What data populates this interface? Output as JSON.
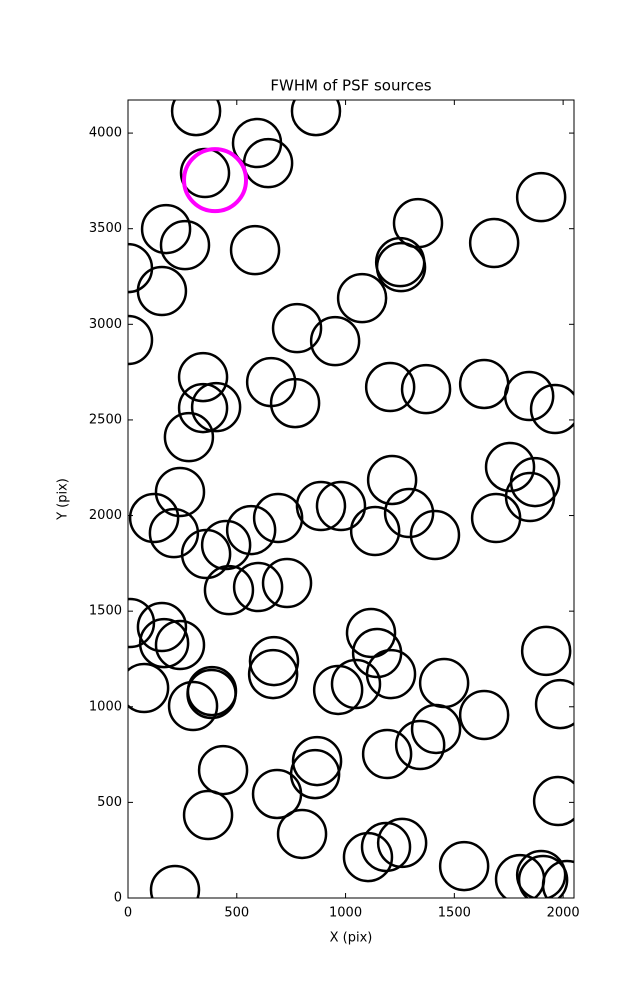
{
  "chart_data": {
    "type": "scatter",
    "title": "FWHM of PSF sources",
    "x_label": "X (pix)",
    "y_label": "Y (pix)",
    "xlim": [
      0,
      2050
    ],
    "ylim": [
      0,
      4173
    ],
    "xticks": [
      0,
      500,
      1000,
      1500,
      2000
    ],
    "yticks": [
      0,
      500,
      1000,
      1500,
      2000,
      2500,
      3000,
      3500,
      4000
    ],
    "grid": false,
    "series": [
      {
        "color": "#000000",
        "x": [
          313,
          864,
          593,
          644,
          354,
          175,
          262,
          584,
          1333,
          1899,
          1683,
          1251,
          1255,
          0,
          156,
          1076,
          777,
          952,
          0,
          345,
          658,
          1205,
          1370,
          1637,
          1844,
          1963,
          768,
          345,
          405,
          280,
          1756,
          1871,
          1848,
          1214,
          239,
          1292,
          120,
          690,
          887,
          979,
          1692,
          1136,
          1411,
          211,
          566,
          451,
          359,
          731,
          598,
          464,
          9,
          156,
          166,
          239,
          1117,
          1145,
          1922,
          671,
          667,
          1209,
          386,
          384,
          74,
          966,
          1048,
          1453,
          1986,
          299,
          1637,
          1416,
          1343,
          1191,
          869,
          860,
          437,
          685,
          1977,
          368,
          800,
          1260,
          1186,
          1103,
          1545,
          1802,
          1899,
          1908,
          2018,
          216
        ],
        "y": [
          4115,
          4115,
          3948,
          3843,
          3791,
          3498,
          3414,
          3388,
          3529,
          3665,
          3425,
          3325,
          3299,
          3294,
          3174,
          3137,
          2980,
          2912,
          2918,
          2724,
          2698,
          2672,
          2661,
          2688,
          2625,
          2557,
          2588,
          2562,
          2567,
          2410,
          2254,
          2175,
          2097,
          2186,
          2123,
          2013,
          1987,
          1987,
          2050,
          2050,
          1987,
          1919,
          1898,
          1908,
          1924,
          1846,
          1799,
          1647,
          1626,
          1610,
          1438,
          1417,
          1333,
          1323,
          1386,
          1281,
          1292,
          1239,
          1171,
          1171,
          1082,
          1067,
          1098,
          1088,
          1119,
          1124,
          1014,
          1004,
          957,
          884,
          800,
          753,
          716,
          648,
          669,
          544,
          507,
          434,
          335,
          288,
          267,
          214,
          167,
          99,
          120,
          94,
          68,
          42
        ]
      },
      {
        "color": "#ff00ff",
        "x": [
          400
        ],
        "y": [
          3754
        ]
      }
    ]
  }
}
